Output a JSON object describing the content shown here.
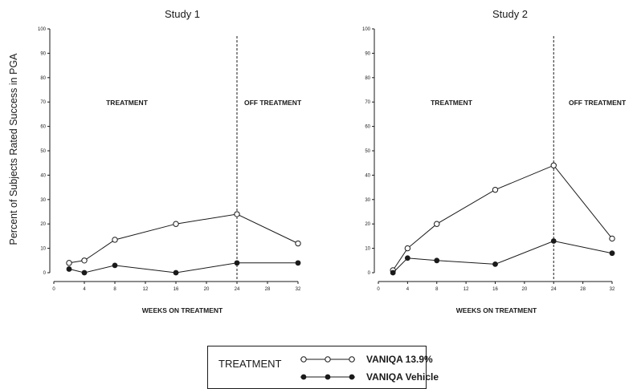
{
  "chart_data": [
    {
      "type": "line",
      "title": "Study 1",
      "ylabel": "Percent of Subjects Rated Success in PGA",
      "xlabel": "WEEKS ON TREATMENT",
      "xlim": [
        0,
        32
      ],
      "ylim": [
        0,
        100
      ],
      "x_ticks": [
        "0",
        "4",
        "8",
        "12",
        "16",
        "20",
        "24",
        "28",
        "32"
      ],
      "y_ticks": [
        "0",
        "10",
        "20",
        "30",
        "40",
        "50",
        "60",
        "70",
        "80",
        "90",
        "100"
      ],
      "treatment_end_week": 24,
      "annotations": [
        "TREATMENT",
        "OFF TREATMENT"
      ],
      "series": [
        {
          "name": "VANIQA 13.9%",
          "marker": "open",
          "x": [
            2,
            4,
            8,
            16,
            24,
            32
          ],
          "values": [
            4,
            5,
            13.5,
            20,
            24,
            12
          ]
        },
        {
          "name": "VANIQA Vehicle",
          "marker": "filled",
          "x": [
            2,
            4,
            8,
            16,
            24,
            32
          ],
          "values": [
            1.5,
            0,
            3,
            0,
            4,
            4
          ]
        }
      ]
    },
    {
      "type": "line",
      "title": "Study 2",
      "ylabel": "",
      "xlabel": "WEEKS ON TREATMENT",
      "xlim": [
        0,
        32
      ],
      "ylim": [
        0,
        100
      ],
      "x_ticks": [
        "0",
        "4",
        "8",
        "12",
        "16",
        "20",
        "24",
        "28",
        "32"
      ],
      "y_ticks": [
        "0",
        "10",
        "20",
        "30",
        "40",
        "50",
        "60",
        "70",
        "80",
        "90",
        "100"
      ],
      "treatment_end_week": 24,
      "annotations": [
        "TREATMENT",
        "OFF TREATMENT"
      ],
      "series": [
        {
          "name": "VANIQA 13.9%",
          "marker": "open",
          "x": [
            2,
            4,
            8,
            16,
            24,
            32
          ],
          "values": [
            1,
            10,
            20,
            34,
            44,
            14
          ]
        },
        {
          "name": "VANIQA Vehicle",
          "marker": "filled",
          "x": [
            2,
            4,
            8,
            16,
            24,
            32
          ],
          "values": [
            0,
            6,
            5,
            3.5,
            13,
            8
          ]
        }
      ]
    }
  ],
  "legend": {
    "title": "TREATMENT",
    "items": [
      "VANIQA 13.9%",
      "VANIQA Vehicle"
    ]
  },
  "colors": {
    "line": "#1a1a1a",
    "background": "#ffffff"
  }
}
